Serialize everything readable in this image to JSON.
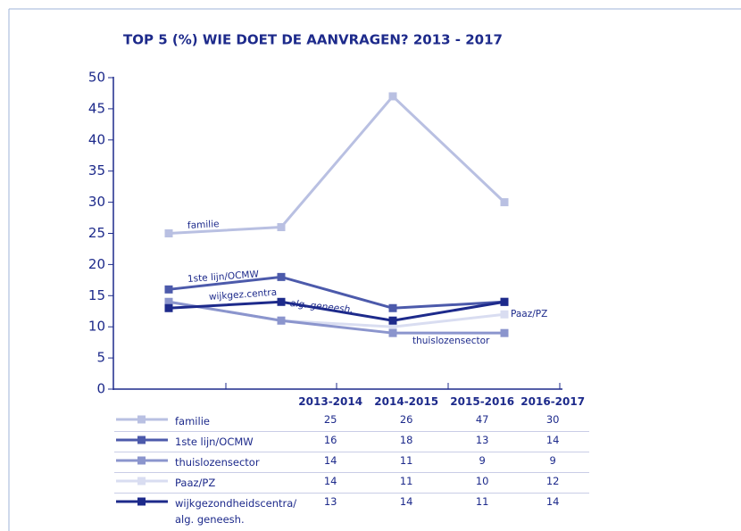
{
  "chart_data": {
    "type": "line",
    "title": "TOP 5 (%) WIE DOET DE AANVRAGEN? 2013 - 2017",
    "categories": [
      "2013-2014",
      "2014-2015",
      "2015-2016",
      "2016-2017"
    ],
    "series": [
      {
        "name": "familie",
        "color": "#b9c0e2",
        "values": [
          25,
          26,
          47,
          30
        ]
      },
      {
        "name": "1ste lijn/OCMW",
        "color": "#4c5aab",
        "values": [
          16,
          18,
          13,
          14
        ]
      },
      {
        "name": "thuislozensector",
        "color": "#8b95cd",
        "values": [
          14,
          11,
          9,
          9
        ]
      },
      {
        "name": "Paaz/PZ",
        "color": "#d9ddf1",
        "values": [
          14,
          11,
          10,
          12
        ]
      },
      {
        "name": "wijkgezondheidscentra/ alg. geneesh.",
        "color": "#1d2a8b",
        "values": [
          13,
          14,
          11,
          14
        ]
      }
    ],
    "annotations": [
      "familie",
      "1ste lijn/OCMW",
      "wijkgez.centra",
      "alg. geneesh.",
      "thuislozensector",
      "Paaz/PZ"
    ],
    "ylim": [
      0,
      50
    ],
    "yticks": [
      0,
      5,
      10,
      15,
      20,
      25,
      30,
      35,
      40,
      45,
      50
    ]
  }
}
